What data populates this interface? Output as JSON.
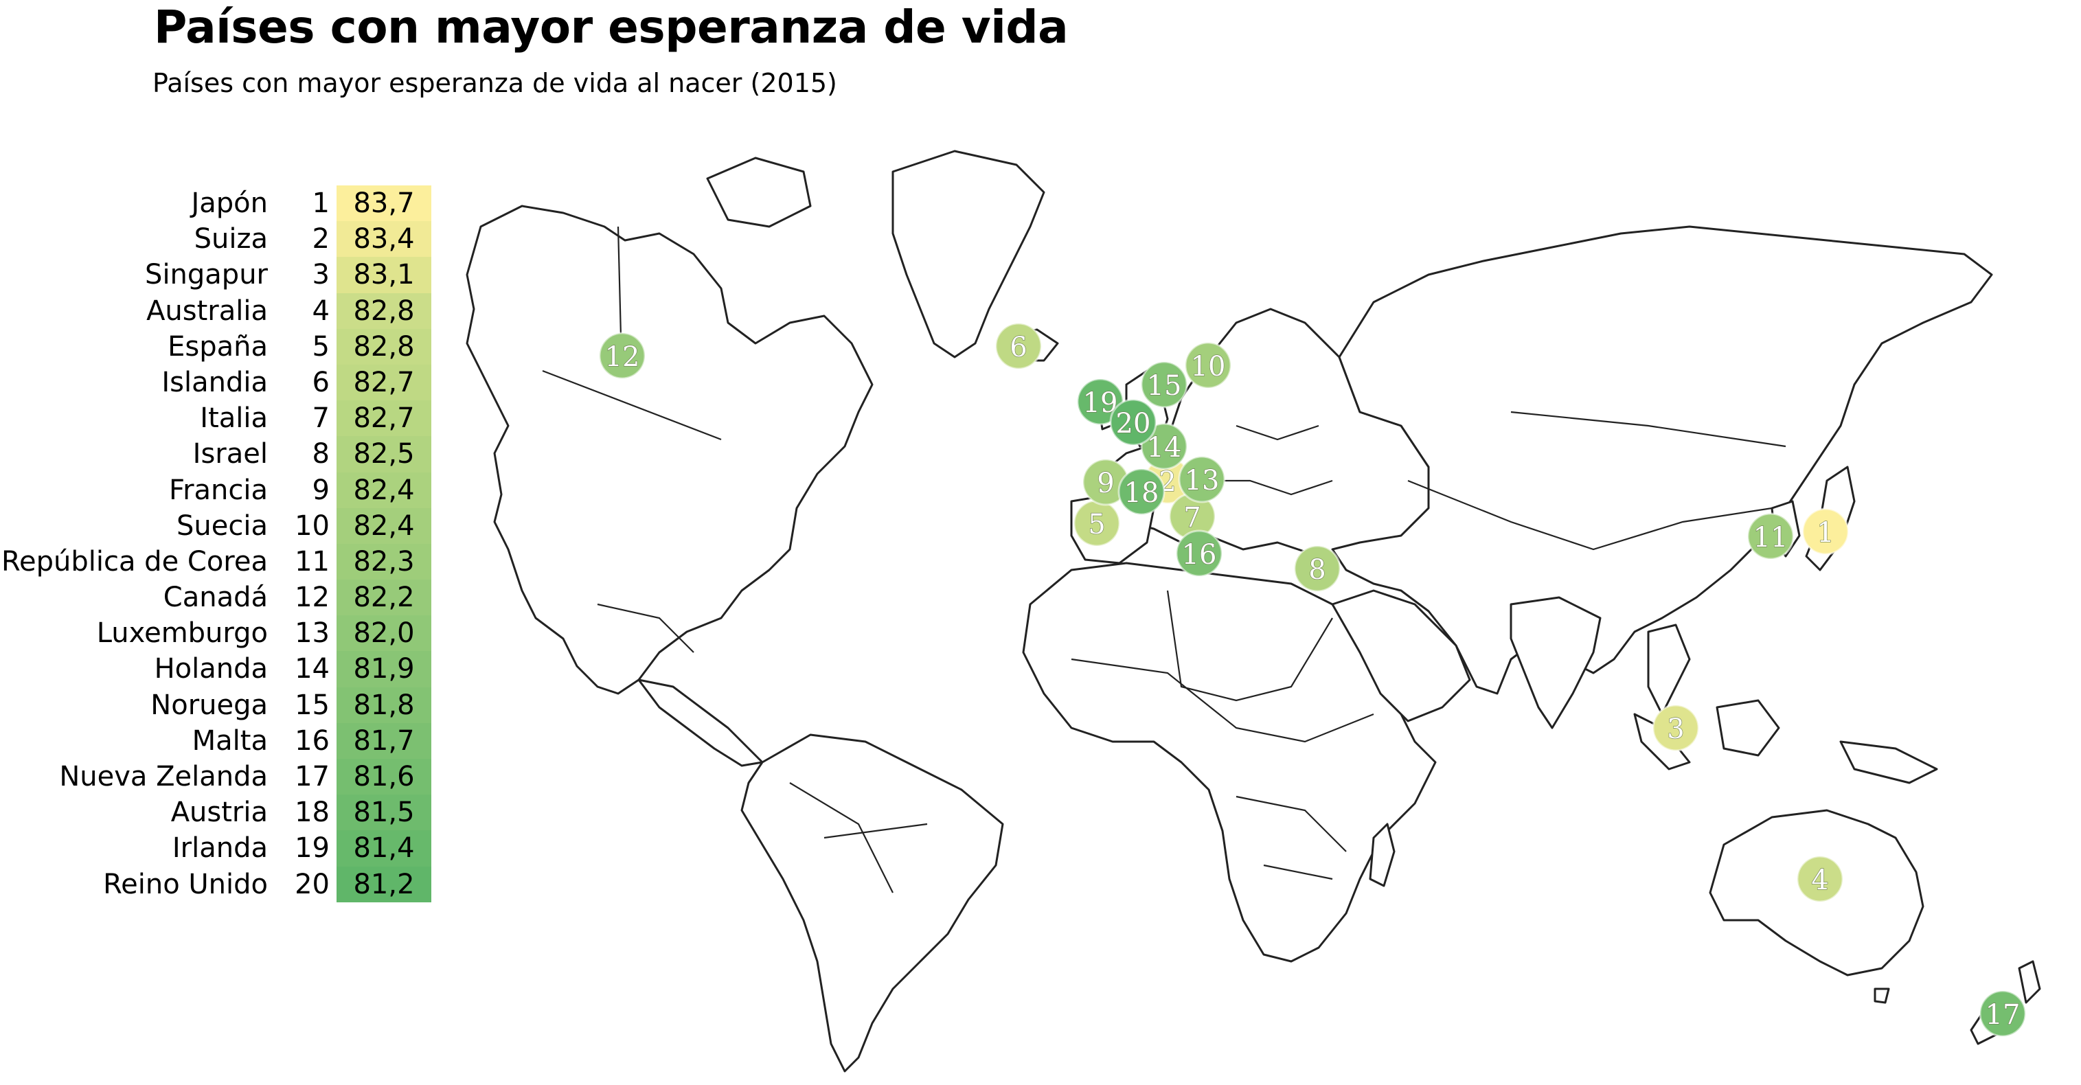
{
  "title": "Países con mayor esperanza de vida",
  "subtitle": "Países con mayor esperanza de vida al nacer (2015)",
  "colors": {
    "scale_high": "#fbef9c",
    "scale_low": "#5cb866",
    "map_stroke": "#222222",
    "map_fill": "#ffffff"
  },
  "ranking": [
    {
      "country": "Japón",
      "rank": "1",
      "value": "83,7",
      "color": "#fcef9c"
    },
    {
      "country": "Suiza",
      "rank": "2",
      "value": "83,4",
      "color": "#f1ea96"
    },
    {
      "country": "Singapur",
      "rank": "3",
      "value": "83,1",
      "color": "#dfe48e"
    },
    {
      "country": "Australia",
      "rank": "4",
      "value": "82,8",
      "color": "#cbdd89"
    },
    {
      "country": "España",
      "rank": "5",
      "value": "82,8",
      "color": "#c4db86"
    },
    {
      "country": "Islandia",
      "rank": "6",
      "value": "82,7",
      "color": "#bfd984"
    },
    {
      "country": "Italia",
      "rank": "7",
      "value": "82,7",
      "color": "#b8d782"
    },
    {
      "country": "Israel",
      "rank": "8",
      "value": "82,5",
      "color": "#b1d480"
    },
    {
      "country": "Francia",
      "rank": "9",
      "value": "82,4",
      "color": "#abd27e"
    },
    {
      "country": "Suecia",
      "rank": "10",
      "value": "82,4",
      "color": "#a4cf7c"
    },
    {
      "country": "República de Corea",
      "rank": "11",
      "value": "82,3",
      "color": "#9ecd7a"
    },
    {
      "country": "Canadá",
      "rank": "12",
      "value": "82,2",
      "color": "#97ca79"
    },
    {
      "country": "Luxemburgo",
      "rank": "13",
      "value": "82,0",
      "color": "#90c877"
    },
    {
      "country": "Holanda",
      "rank": "14",
      "value": "81,9",
      "color": "#89c575"
    },
    {
      "country": "Noruega",
      "rank": "15",
      "value": "81,8",
      "color": "#83c373"
    },
    {
      "country": "Malta",
      "rank": "16",
      "value": "81,7",
      "color": "#7cc071"
    },
    {
      "country": "Nueva Zelanda",
      "rank": "17",
      "value": "81,6",
      "color": "#75be6f"
    },
    {
      "country": "Austria",
      "rank": "18",
      "value": "81,5",
      "color": "#6ebb6d"
    },
    {
      "country": "Irlanda",
      "rank": "19",
      "value": "81,4",
      "color": "#67b96b"
    },
    {
      "country": "Reino Unido",
      "rank": "20",
      "value": "81,2",
      "color": "#60b669"
    }
  ]
}
